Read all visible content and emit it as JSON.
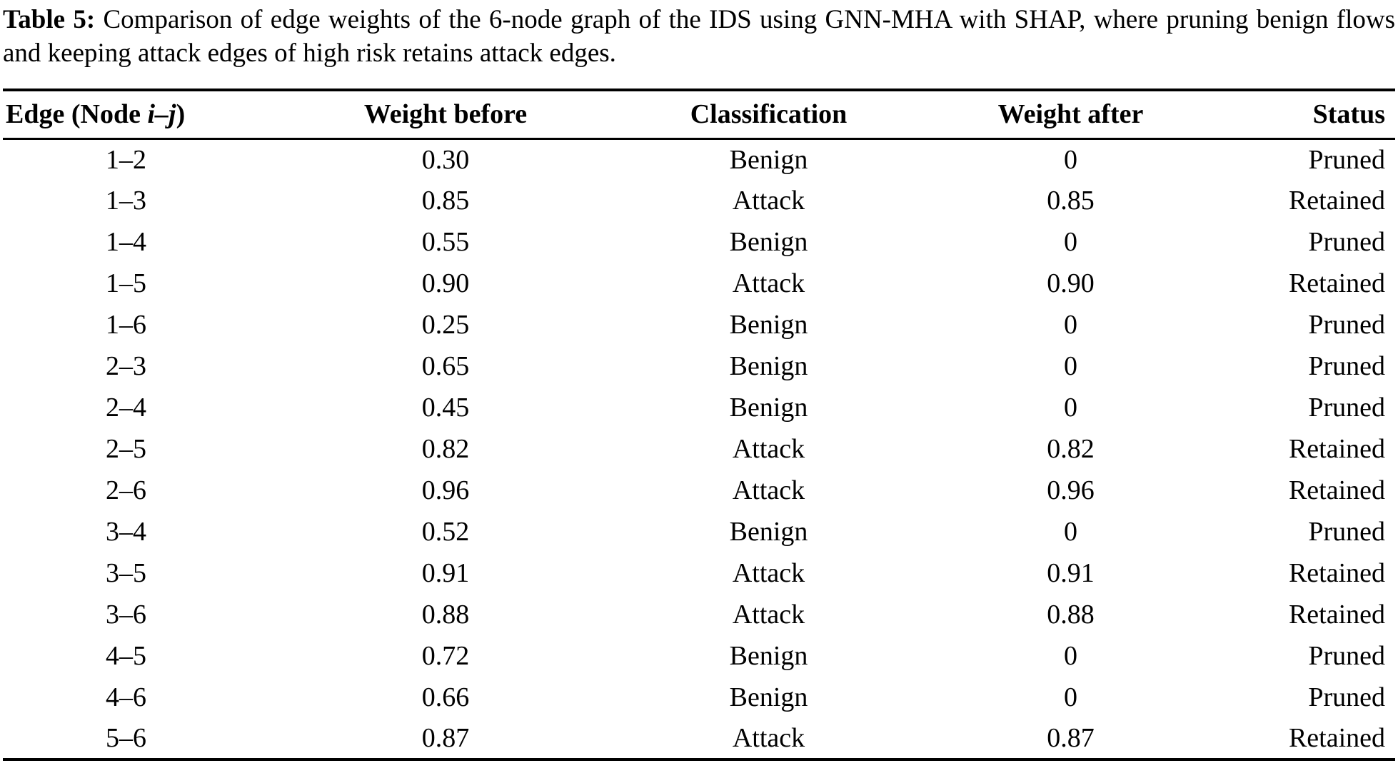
{
  "caption": {
    "label": "Table 5:",
    "text": "Comparison of edge weights of the 6-node graph of the IDS using GNN-MHA with SHAP, where pruning benign flows and keeping attack edges of high risk retains attack edges."
  },
  "table": {
    "header": {
      "edge_prefix": "Edge (Node ",
      "edge_italic": "i–j",
      "edge_suffix": ")",
      "weight_before": "Weight before",
      "classification": "Classification",
      "weight_after": "Weight after",
      "status": "Status"
    },
    "rows": [
      {
        "edge": "1–2",
        "weight_before": "0.30",
        "classification": "Benign",
        "weight_after": "0",
        "status": "Pruned"
      },
      {
        "edge": "1–3",
        "weight_before": "0.85",
        "classification": "Attack",
        "weight_after": "0.85",
        "status": "Retained"
      },
      {
        "edge": "1–4",
        "weight_before": "0.55",
        "classification": "Benign",
        "weight_after": "0",
        "status": "Pruned"
      },
      {
        "edge": "1–5",
        "weight_before": "0.90",
        "classification": "Attack",
        "weight_after": "0.90",
        "status": "Retained"
      },
      {
        "edge": "1–6",
        "weight_before": "0.25",
        "classification": "Benign",
        "weight_after": "0",
        "status": "Pruned"
      },
      {
        "edge": "2–3",
        "weight_before": "0.65",
        "classification": "Benign",
        "weight_after": "0",
        "status": "Pruned"
      },
      {
        "edge": "2–4",
        "weight_before": "0.45",
        "classification": "Benign",
        "weight_after": "0",
        "status": "Pruned"
      },
      {
        "edge": "2–5",
        "weight_before": "0.82",
        "classification": "Attack",
        "weight_after": "0.82",
        "status": "Retained"
      },
      {
        "edge": "2–6",
        "weight_before": "0.96",
        "classification": "Attack",
        "weight_after": "0.96",
        "status": "Retained"
      },
      {
        "edge": "3–4",
        "weight_before": "0.52",
        "classification": "Benign",
        "weight_after": "0",
        "status": "Pruned"
      },
      {
        "edge": "3–5",
        "weight_before": "0.91",
        "classification": "Attack",
        "weight_after": "0.91",
        "status": "Retained"
      },
      {
        "edge": "3–6",
        "weight_before": "0.88",
        "classification": "Attack",
        "weight_after": "0.88",
        "status": "Retained"
      },
      {
        "edge": "4–5",
        "weight_before": "0.72",
        "classification": "Benign",
        "weight_after": "0",
        "status": "Pruned"
      },
      {
        "edge": "4–6",
        "weight_before": "0.66",
        "classification": "Benign",
        "weight_after": "0",
        "status": "Pruned"
      },
      {
        "edge": "5–6",
        "weight_before": "0.87",
        "classification": "Attack",
        "weight_after": "0.87",
        "status": "Retained"
      }
    ]
  }
}
